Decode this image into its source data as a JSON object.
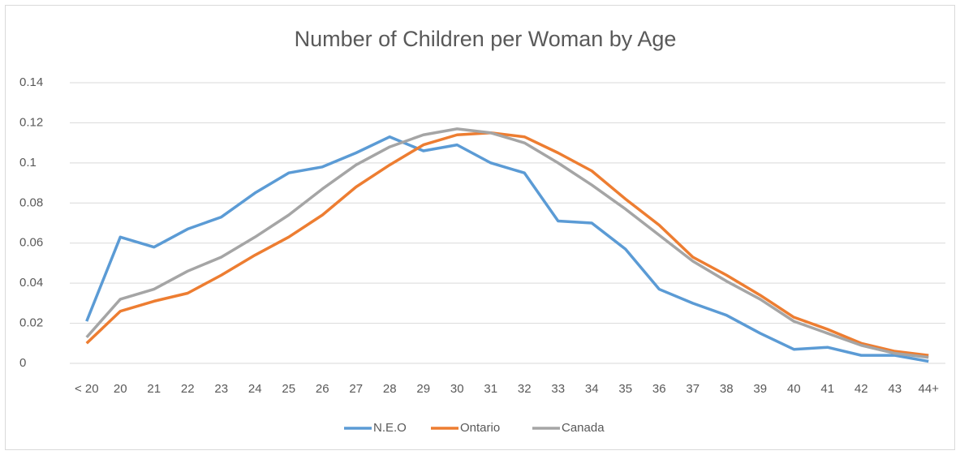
{
  "chart_data": {
    "type": "line",
    "title": "Number of Children per Woman by Age",
    "categories": [
      "< 20",
      "20",
      "21",
      "22",
      "23",
      "24",
      "25",
      "26",
      "27",
      "28",
      "29",
      "30",
      "31",
      "32",
      "33",
      "34",
      "35",
      "36",
      "37",
      "38",
      "39",
      "40",
      "41",
      "42",
      "43",
      "44+"
    ],
    "series": [
      {
        "name": "N.E.O",
        "color": "#5b9bd5",
        "values": [
          0.021,
          0.063,
          0.058,
          0.067,
          0.073,
          0.085,
          0.095,
          0.098,
          0.105,
          0.113,
          0.106,
          0.109,
          0.1,
          0.095,
          0.071,
          0.07,
          0.057,
          0.037,
          0.03,
          0.024,
          0.015,
          0.007,
          0.008,
          0.004,
          0.004,
          0.001
        ]
      },
      {
        "name": "Ontario",
        "color": "#ed7d31",
        "values": [
          0.01,
          0.026,
          0.031,
          0.035,
          0.044,
          0.054,
          0.063,
          0.074,
          0.088,
          0.099,
          0.109,
          0.114,
          0.115,
          0.113,
          0.105,
          0.096,
          0.082,
          0.069,
          0.053,
          0.044,
          0.034,
          0.023,
          0.017,
          0.01,
          0.006,
          0.004
        ]
      },
      {
        "name": "Canada",
        "color": "#a5a5a5",
        "values": [
          0.013,
          0.032,
          0.037,
          0.046,
          0.053,
          0.063,
          0.074,
          0.087,
          0.099,
          0.108,
          0.114,
          0.117,
          0.115,
          0.11,
          0.1,
          0.089,
          0.077,
          0.064,
          0.051,
          0.041,
          0.032,
          0.021,
          0.015,
          0.009,
          0.005,
          0.003
        ]
      }
    ],
    "ylim": [
      0,
      0.14
    ],
    "yticks": [
      0,
      0.02,
      0.04,
      0.06,
      0.08,
      0.1,
      0.12,
      0.14
    ],
    "grid": true,
    "legend": "bottom"
  }
}
